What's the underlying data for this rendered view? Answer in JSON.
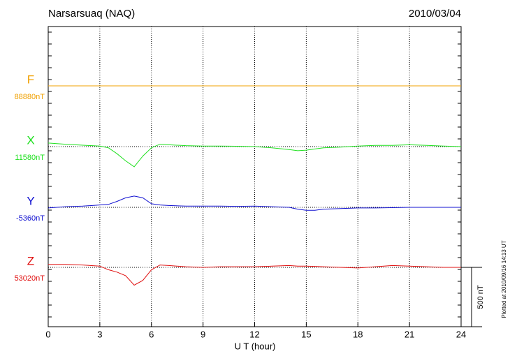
{
  "chart_data": {
    "type": "line",
    "title": "Narsarsuaq (NAQ)",
    "date": "2010/03/04",
    "x_label": "U T (hour)",
    "footnote": "Plotted at 2010/09/16 14:13 UT",
    "scale": {
      "value": 500,
      "label": "500 nT"
    },
    "xlim": [
      0,
      24
    ],
    "xticks": [
      0,
      3,
      6,
      9,
      12,
      15,
      18,
      21,
      24
    ],
    "grid": true,
    "x": [
      0,
      1,
      2,
      3,
      3.5,
      4,
      4.5,
      5,
      5.5,
      6,
      6.5,
      7,
      8,
      9,
      10,
      11,
      12,
      13,
      14,
      14.5,
      15,
      15.5,
      16,
      17,
      18,
      19,
      20,
      21,
      22,
      23,
      24
    ],
    "series": [
      {
        "name": "F",
        "color": "#f0a000",
        "baseline": {
          "value": 88880,
          "label": "88880nT"
        },
        "values": [
          88880,
          88880,
          88880,
          88880,
          88880,
          88880,
          88880,
          88880,
          88880,
          88880,
          88880,
          88880,
          88880,
          88880,
          88880,
          88880,
          88880,
          88880,
          88880,
          88880,
          88880,
          88880,
          88880,
          88880,
          88880,
          88880,
          88880,
          88880,
          88880,
          88880,
          88880
        ]
      },
      {
        "name": "X",
        "color": "#20e020",
        "baseline": {
          "value": 11580,
          "label": "11580nT"
        },
        "values": [
          11610,
          11600,
          11592,
          11585,
          11570,
          11520,
          11460,
          11410,
          11500,
          11570,
          11600,
          11595,
          11588,
          11585,
          11585,
          11583,
          11580,
          11570,
          11555,
          11545,
          11550,
          11560,
          11570,
          11575,
          11585,
          11590,
          11590,
          11595,
          11590,
          11585,
          11580
        ]
      },
      {
        "name": "Y",
        "color": "#1010d0",
        "baseline": {
          "value": -5360,
          "label": "-5360nT"
        },
        "values": [
          -5365,
          -5355,
          -5350,
          -5340,
          -5335,
          -5310,
          -5280,
          -5265,
          -5280,
          -5330,
          -5340,
          -5345,
          -5350,
          -5350,
          -5350,
          -5352,
          -5350,
          -5355,
          -5360,
          -5375,
          -5385,
          -5385,
          -5375,
          -5370,
          -5365,
          -5365,
          -5363,
          -5360,
          -5360,
          -5360,
          -5360
        ]
      },
      {
        "name": "Z",
        "color": "#e01010",
        "baseline": {
          "value": 53020,
          "label": "53020nT"
        },
        "values": [
          53045,
          53045,
          53040,
          53030,
          53000,
          52980,
          52950,
          52870,
          52910,
          53000,
          53040,
          53035,
          53025,
          53020,
          53025,
          53025,
          53025,
          53030,
          53035,
          53030,
          53030,
          53028,
          53025,
          53020,
          53015,
          53025,
          53035,
          53030,
          53025,
          53020,
          53020
        ]
      }
    ]
  }
}
